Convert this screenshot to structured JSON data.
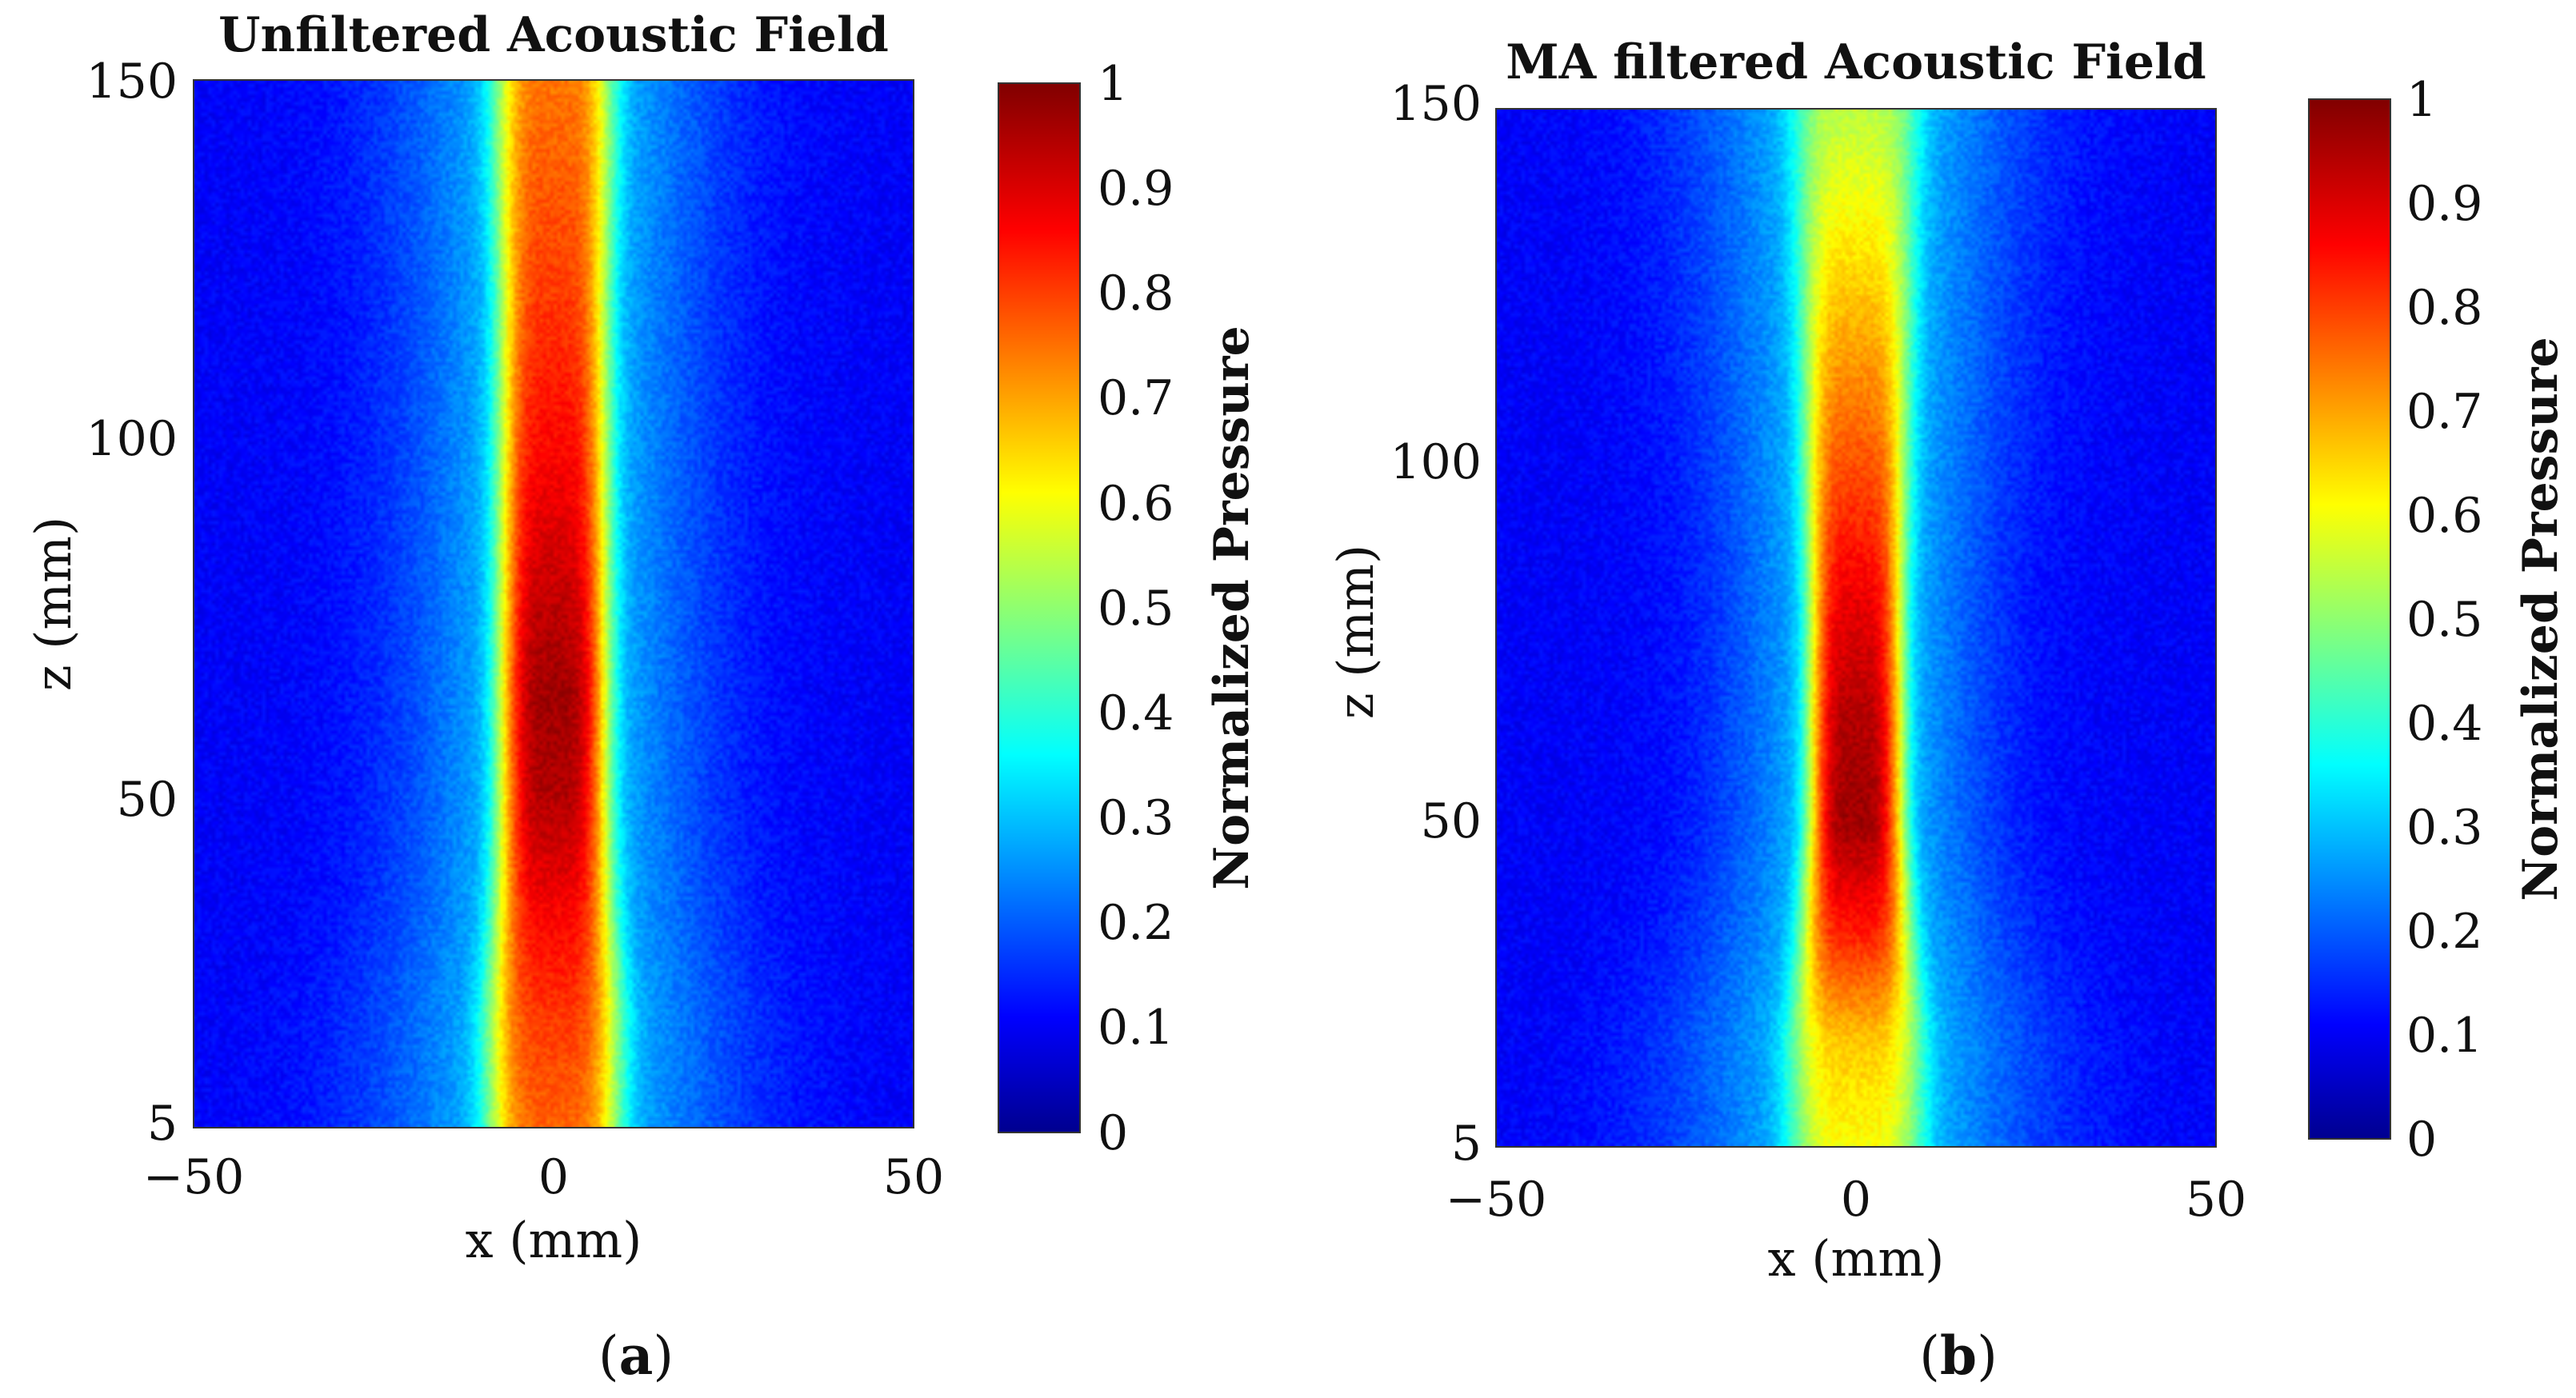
{
  "chart_data": [
    {
      "type": "heatmap",
      "panel_label": "a",
      "title": "Unfiltered Acoustic Field",
      "xlabel": "x (mm)",
      "ylabel": "z (mm)",
      "xlim": [
        -50,
        50
      ],
      "ylim": [
        5,
        150
      ],
      "xticks": [
        -50,
        0,
        50
      ],
      "xtick_labels": [
        "−50",
        "0",
        "50"
      ],
      "yticks": [
        5,
        50,
        100,
        150
      ],
      "ytick_labels": [
        "5",
        "50",
        "100",
        "150"
      ],
      "colorbar": {
        "label": "Normalized Pressure",
        "colormap": "jet",
        "clim": [
          0,
          1
        ],
        "ticks": [
          0,
          0.1,
          0.2,
          0.3,
          0.4,
          0.5,
          0.6,
          0.7,
          0.8,
          0.9,
          1
        ],
        "tick_labels": [
          "0",
          "0.1",
          "0.2",
          "0.3",
          "0.4",
          "0.5",
          "0.6",
          "0.7",
          "0.8",
          "0.9",
          "1"
        ]
      },
      "beam_profile": {
        "z": [
          5,
          20,
          35,
          50,
          65,
          80,
          100,
          120,
          140,
          150
        ],
        "peak_pressure": [
          0.78,
          0.82,
          0.88,
          0.95,
          0.97,
          0.93,
          0.87,
          0.82,
          0.78,
          0.76
        ],
        "half_width_mm": [
          9,
          9,
          8,
          7.5,
          7.5,
          7.5,
          7.5,
          7.5,
          8,
          8
        ]
      },
      "background_pressure": 0.12
    },
    {
      "type": "heatmap",
      "panel_label": "b",
      "title": "MA filtered Acoustic Field",
      "xlabel": "x (mm)",
      "ylabel": "z (mm)",
      "xlim": [
        -50,
        50
      ],
      "ylim": [
        5,
        150
      ],
      "xticks": [
        -50,
        0,
        50
      ],
      "xtick_labels": [
        "−50",
        "0",
        "50"
      ],
      "yticks": [
        5,
        50,
        100,
        150
      ],
      "ytick_labels": [
        "5",
        "50",
        "100",
        "150"
      ],
      "colorbar": {
        "label": "Normalized Pressure",
        "colormap": "jet",
        "clim": [
          0,
          1
        ],
        "ticks": [
          0,
          0.1,
          0.2,
          0.3,
          0.4,
          0.5,
          0.6,
          0.7,
          0.8,
          0.9,
          1
        ],
        "tick_labels": [
          "0",
          "0.1",
          "0.2",
          "0.3",
          "0.4",
          "0.5",
          "0.6",
          "0.7",
          "0.8",
          "0.9",
          "1"
        ]
      },
      "beam_profile": {
        "z": [
          5,
          20,
          35,
          50,
          65,
          80,
          100,
          120,
          140,
          150
        ],
        "peak_pressure": [
          0.62,
          0.68,
          0.85,
          0.97,
          0.95,
          0.9,
          0.8,
          0.7,
          0.6,
          0.56
        ],
        "half_width_mm": [
          9,
          9,
          7.5,
          6.5,
          6.5,
          6.5,
          7,
          7.5,
          8,
          8.5
        ]
      },
      "background_pressure": 0.12
    }
  ]
}
